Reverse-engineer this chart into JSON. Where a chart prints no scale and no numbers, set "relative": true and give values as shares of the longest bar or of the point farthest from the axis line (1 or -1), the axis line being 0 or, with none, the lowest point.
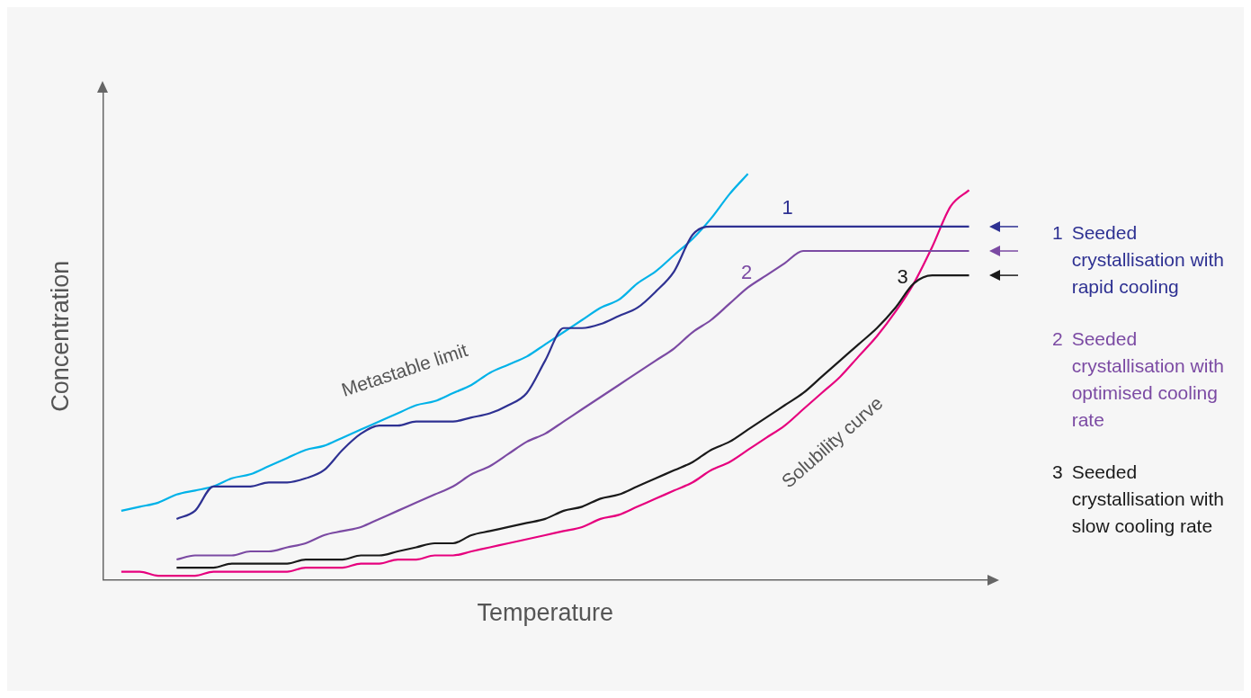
{
  "chart_data": {
    "type": "line",
    "relative": true,
    "xlabel": "Temperature",
    "ylabel": "Concentration",
    "legend": "right",
    "grid": false,
    "marker": "none",
    "line_style": "solid",
    "categories": [
      null,
      null,
      null,
      null,
      null,
      null,
      null,
      null,
      null,
      null,
      null,
      null,
      null,
      null,
      null,
      null,
      null,
      null,
      null,
      null,
      null,
      null,
      null,
      null,
      null,
      null,
      null,
      null,
      null,
      null,
      null,
      null,
      null,
      null,
      null,
      null,
      null,
      null,
      null,
      null,
      null,
      null,
      null,
      null,
      null,
      null,
      null,
      null,
      null
    ],
    "annotations": [
      "1",
      "2",
      "3"
    ],
    "series": [
      {
        "name": "Seeded crystallisation with rapid cooling",
        "color": "#2e3192",
        "values": [
          null,
          null,
          null,
          null,
          0.15,
          0.17,
          0.23,
          0.23,
          0.23,
          0.24,
          0.24,
          0.25,
          0.27,
          0.32,
          0.36,
          0.38,
          0.38,
          0.39,
          0.39,
          0.39,
          0.4,
          0.41,
          0.43,
          0.46,
          0.54,
          0.62,
          0.62,
          0.63,
          0.65,
          0.67,
          0.71,
          0.76,
          0.85,
          0.87,
          0.87,
          0.87,
          0.87,
          0.87,
          0.87,
          0.87,
          0.87,
          0.87,
          0.87,
          0.87,
          0.87,
          0.87,
          0.87,
          0.87,
          null
        ]
      },
      {
        "name": "Seeded crystallisation with optimised cooling rate",
        "color": "#7b4aa3",
        "values": [
          null,
          null,
          null,
          null,
          0.05,
          0.06,
          0.06,
          0.06,
          0.07,
          0.07,
          0.08,
          0.09,
          0.11,
          0.12,
          0.13,
          0.15,
          0.17,
          0.19,
          0.21,
          0.23,
          0.26,
          0.28,
          0.31,
          0.34,
          0.36,
          0.39,
          0.42,
          0.45,
          0.48,
          0.51,
          0.54,
          0.57,
          0.61,
          0.64,
          0.68,
          0.72,
          0.75,
          0.78,
          0.81,
          0.81,
          0.81,
          0.81,
          0.81,
          0.81,
          0.81,
          0.81,
          0.81,
          0.81,
          null
        ]
      },
      {
        "name": "Seeded crystallisation with slow cooling rate",
        "color": "#1a1a1a",
        "values": [
          null,
          null,
          null,
          null,
          0.03,
          0.03,
          0.03,
          0.04,
          0.04,
          0.04,
          0.04,
          0.05,
          0.05,
          0.05,
          0.06,
          0.06,
          0.07,
          0.08,
          0.09,
          0.09,
          0.11,
          0.12,
          0.13,
          0.14,
          0.15,
          0.17,
          0.18,
          0.2,
          0.21,
          0.23,
          0.25,
          0.27,
          0.29,
          0.32,
          0.34,
          0.37,
          0.4,
          0.43,
          0.46,
          0.5,
          0.54,
          0.58,
          0.62,
          0.67,
          0.73,
          0.75,
          0.75,
          0.75,
          null
        ]
      },
      {
        "name": "Metastable limit",
        "color": "#00b2e8",
        "values": [
          null,
          0.17,
          0.18,
          0.19,
          0.21,
          0.22,
          0.23,
          0.25,
          0.26,
          0.28,
          0.3,
          0.32,
          0.33,
          0.35,
          0.37,
          0.39,
          0.41,
          0.43,
          0.44,
          0.46,
          0.48,
          0.51,
          0.53,
          0.55,
          0.58,
          0.61,
          0.64,
          0.67,
          0.69,
          0.73,
          0.76,
          0.8,
          0.84,
          0.89,
          0.95,
          1.0,
          null,
          null,
          null,
          null,
          null,
          null,
          null,
          null,
          null,
          null,
          null,
          null,
          null
        ]
      },
      {
        "name": "Solubility curve",
        "color": "#e6007e",
        "values": [
          null,
          0.02,
          0.02,
          0.01,
          0.01,
          0.01,
          0.02,
          0.02,
          0.02,
          0.02,
          0.02,
          0.03,
          0.03,
          0.03,
          0.04,
          0.04,
          0.05,
          0.05,
          0.06,
          0.06,
          0.07,
          0.08,
          0.09,
          0.1,
          0.11,
          0.12,
          0.13,
          0.15,
          0.16,
          0.18,
          0.2,
          0.22,
          0.24,
          0.27,
          0.29,
          0.32,
          0.35,
          0.38,
          0.42,
          0.46,
          0.5,
          0.55,
          0.6,
          0.66,
          0.73,
          0.82,
          0.92,
          0.96,
          null
        ]
      }
    ]
  }
}
